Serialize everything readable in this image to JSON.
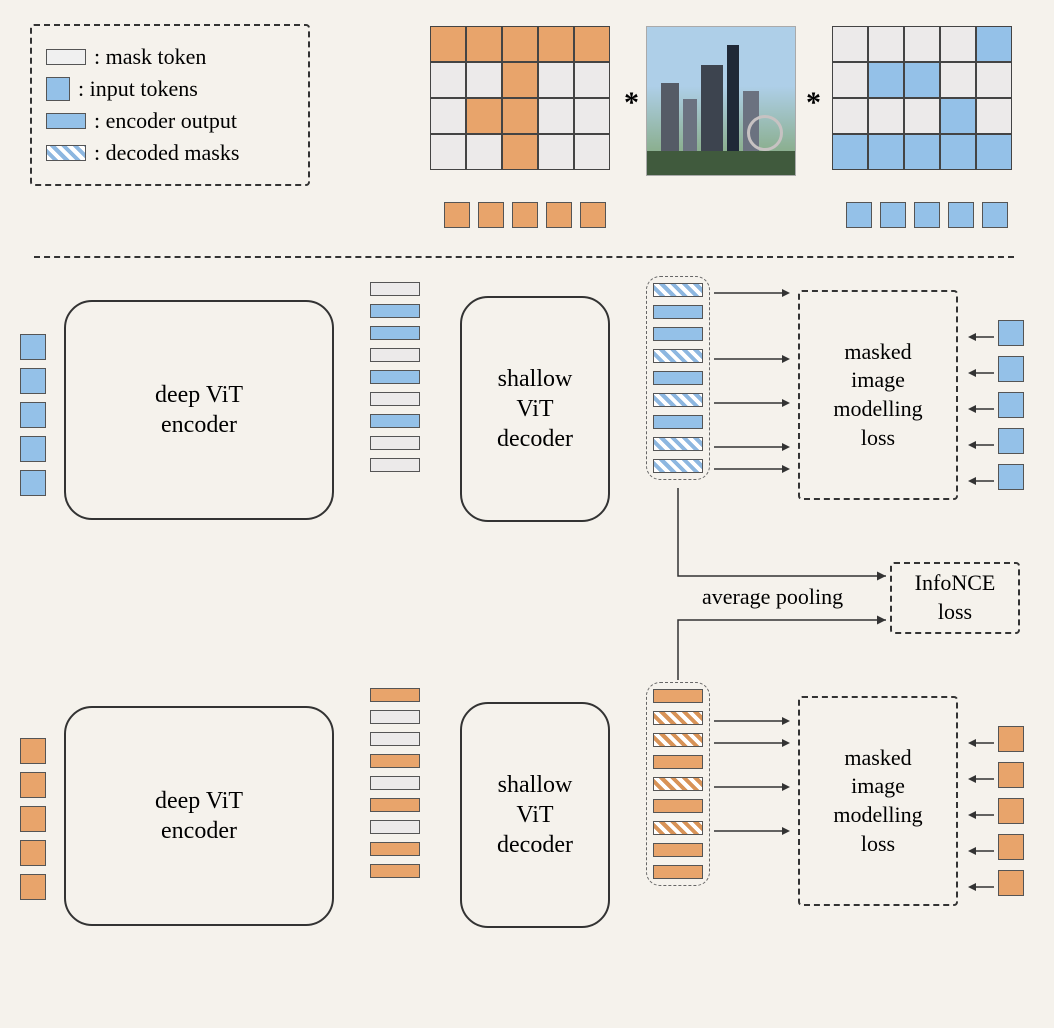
{
  "colors": {
    "orange": "#e8a46b",
    "blue": "#94c1e8",
    "grey": "#eceaea",
    "stroke": "#444444",
    "bg": "#f5f2ec",
    "hatch_blue_a": "#ffffff",
    "hatch_blue_b": "#8db7e0",
    "hatch_orange_a": "#ffffff",
    "hatch_orange_b": "#d89357"
  },
  "legend": {
    "items": [
      {
        "label": ": mask token"
      },
      {
        "label": ": input tokens"
      },
      {
        "label": ": encoder output"
      },
      {
        "label": ": decoded masks"
      }
    ]
  },
  "grids": {
    "orange": {
      "rows": 4,
      "cols": 5,
      "mask": [
        [
          1,
          1,
          1,
          1,
          1
        ],
        [
          0,
          0,
          1,
          0,
          0
        ],
        [
          0,
          1,
          1,
          0,
          0
        ],
        [
          0,
          0,
          1,
          0,
          0
        ]
      ]
    },
    "blue": {
      "rows": 4,
      "cols": 5,
      "mask": [
        [
          0,
          0,
          0,
          0,
          1
        ],
        [
          0,
          1,
          1,
          0,
          0
        ],
        [
          0,
          0,
          0,
          1,
          0
        ],
        [
          1,
          1,
          1,
          1,
          1
        ]
      ]
    }
  },
  "operators": {
    "star1": "*",
    "star2": "*"
  },
  "top_tokens": {
    "orange_count": 5,
    "blue_count": 5
  },
  "branch_top": {
    "color": "blue",
    "input_tokens": 5,
    "encoder_label": "deep ViT\nencoder",
    "encoder_out": [
      "grey",
      "blue",
      "blue",
      "grey",
      "blue",
      "grey",
      "blue",
      "grey",
      "grey"
    ],
    "decoder_label": "shallow\nViT\ndecoder",
    "decoder_out": [
      "hatch",
      "solid",
      "solid",
      "hatch",
      "solid",
      "hatch",
      "solid",
      "hatch",
      "hatch"
    ],
    "loss_label": "masked\nimage\nmodelling\nloss",
    "target_tokens": 5
  },
  "branch_bottom": {
    "color": "orange",
    "input_tokens": 5,
    "encoder_label": "deep ViT\nencoder",
    "encoder_out": [
      "orange",
      "grey",
      "grey",
      "orange",
      "grey",
      "orange",
      "grey",
      "orange",
      "orange"
    ],
    "decoder_label": "shallow\nViT\ndecoder",
    "decoder_out": [
      "solid",
      "hatch",
      "hatch",
      "solid",
      "hatch",
      "solid",
      "hatch",
      "solid",
      "solid"
    ],
    "loss_label": "masked\nimage\nmodelling\nloss",
    "target_tokens": 5
  },
  "center": {
    "pooling_label": "average pooling",
    "infonce_label": "InfoNCE\nloss"
  },
  "typography": {
    "label_fontsize": 22,
    "module_fontsize": 24
  }
}
